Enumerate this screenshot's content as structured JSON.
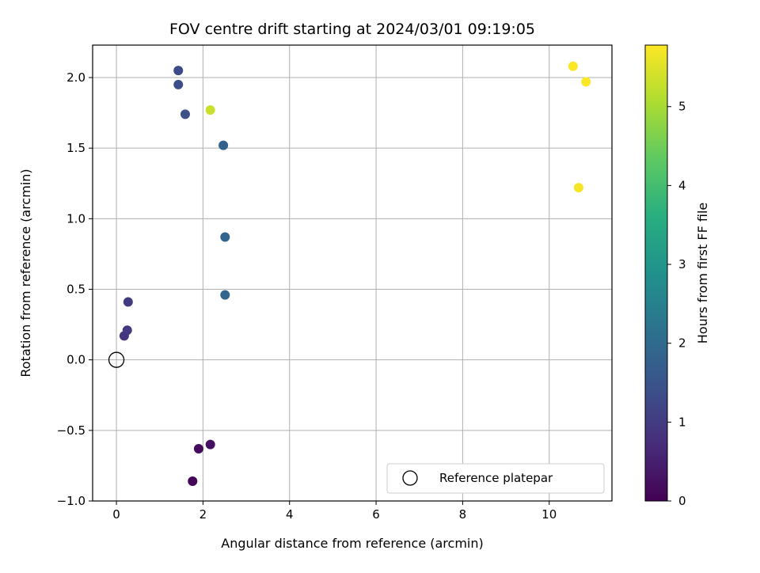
{
  "chart_data": {
    "type": "scatter",
    "title": "FOV centre drift starting at 2024/03/01 09:19:05",
    "xlabel": "Angular distance from reference (arcmin)",
    "ylabel": "Rotation from reference (arcmin)",
    "xlim": [
      -0.55,
      11.45
    ],
    "ylim": [
      -1.0,
      2.23
    ],
    "xticks": [
      0,
      2,
      4,
      6,
      8,
      10
    ],
    "xtick_labels": [
      "0",
      "2",
      "4",
      "6",
      "8",
      "10"
    ],
    "yticks": [
      -1.0,
      -0.5,
      0.0,
      0.5,
      1.0,
      1.5,
      2.0
    ],
    "ytick_labels": [
      "−1.0",
      "−0.5",
      "0.0",
      "0.5",
      "1.0",
      "1.5",
      "2.0"
    ],
    "grid": true,
    "colormap": "viridis",
    "colorbar": {
      "label": "Hours from first FF file",
      "range": [
        0,
        5.78
      ],
      "ticks": [
        0,
        1,
        2,
        3,
        4,
        5
      ],
      "tick_labels": [
        "0",
        "1",
        "2",
        "3",
        "4",
        "5"
      ]
    },
    "reference": {
      "x": 0,
      "y": 0,
      "label": "Reference platepar"
    },
    "legend_position": "lower right",
    "points": [
      {
        "x": 1.76,
        "y": -0.86,
        "hours": 0.05
      },
      {
        "x": 1.9,
        "y": -0.63,
        "hours": 0.15
      },
      {
        "x": 2.17,
        "y": -0.6,
        "hours": 0.25
      },
      {
        "x": 0.18,
        "y": 0.17,
        "hours": 0.85
      },
      {
        "x": 0.25,
        "y": 0.21,
        "hours": 0.95
      },
      {
        "x": 0.27,
        "y": 0.41,
        "hours": 1.0
      },
      {
        "x": 1.43,
        "y": 2.05,
        "hours": 1.3
      },
      {
        "x": 1.43,
        "y": 1.95,
        "hours": 1.35
      },
      {
        "x": 1.59,
        "y": 1.74,
        "hours": 1.4
      },
      {
        "x": 2.47,
        "y": 1.52,
        "hours": 1.8
      },
      {
        "x": 2.51,
        "y": 0.87,
        "hours": 1.85
      },
      {
        "x": 2.51,
        "y": 0.46,
        "hours": 1.9
      },
      {
        "x": 2.17,
        "y": 1.77,
        "hours": 5.3
      },
      {
        "x": 10.55,
        "y": 2.08,
        "hours": 5.75
      },
      {
        "x": 10.85,
        "y": 1.97,
        "hours": 5.75
      },
      {
        "x": 10.68,
        "y": 1.22,
        "hours": 5.7
      }
    ]
  }
}
